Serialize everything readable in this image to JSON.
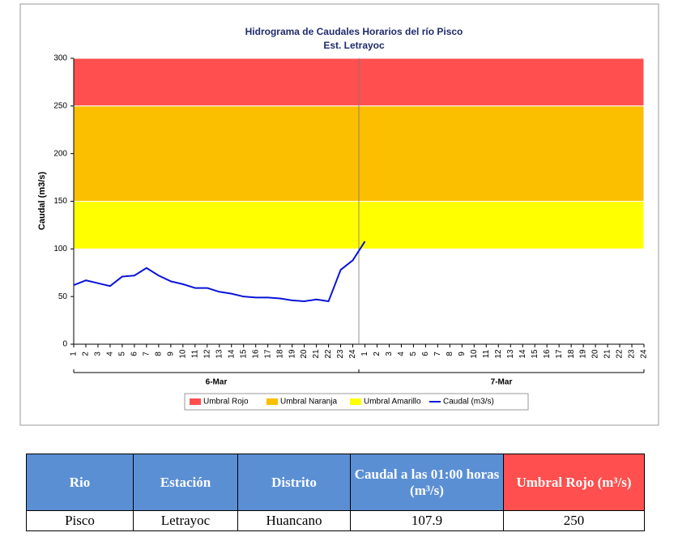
{
  "chart_data": {
    "type": "line",
    "title": "Hidrograma de Caudales Horarios del río Pisco",
    "subtitle": "Est. Letrayoc",
    "y_label": "Caudal  (m3/s)",
    "categories": [
      "1",
      "2",
      "3",
      "4",
      "5",
      "6",
      "7",
      "8",
      "9",
      "10",
      "11",
      "12",
      "13",
      "14",
      "15",
      "16",
      "17",
      "18",
      "19",
      "20",
      "21",
      "22",
      "23",
      "24",
      "1",
      "2",
      "3",
      "4",
      "5",
      "6",
      "7",
      "8",
      "9",
      "10",
      "11",
      "12",
      "13",
      "14",
      "15",
      "16",
      "17",
      "18",
      "19",
      "20",
      "21",
      "22",
      "23",
      "24"
    ],
    "groups": [
      "6-Mar",
      "7-Mar"
    ],
    "thresholds": [
      {
        "name": "Umbral Rojo",
        "color": "#ff4f4f",
        "value": 250
      },
      {
        "name": "Umbral Naranja",
        "color": "#fbbf00",
        "value": 150
      },
      {
        "name": "Umbral Amarillo",
        "color": "#ffff00",
        "value": 100
      }
    ],
    "series": [
      {
        "name": "Caudal (m3/s)",
        "color": "#0a14d8",
        "values": [
          62,
          67,
          64,
          61,
          71,
          72,
          80,
          72,
          66,
          63,
          59,
          59,
          55,
          53,
          50,
          49,
          49,
          48,
          46,
          45,
          47,
          45,
          78,
          88,
          107.9,
          null,
          null,
          null,
          null,
          null,
          null,
          null,
          null,
          null,
          null,
          null,
          null,
          null,
          null,
          null,
          null,
          null,
          null,
          null,
          null,
          null,
          null,
          null
        ]
      }
    ],
    "ylim": [
      0,
      300
    ],
    "yticks": [
      0,
      50,
      100,
      150,
      200,
      250,
      300
    ]
  },
  "table": {
    "header": [
      "Rio",
      "Estación",
      "Distrito",
      "Caudal a las 01:00 horas (m³/s)",
      "Umbral Rojo (m³/s)"
    ],
    "rows": [
      [
        "Pisco",
        "Letrayoc",
        "Huancano",
        "107.9",
        "250"
      ]
    ]
  }
}
